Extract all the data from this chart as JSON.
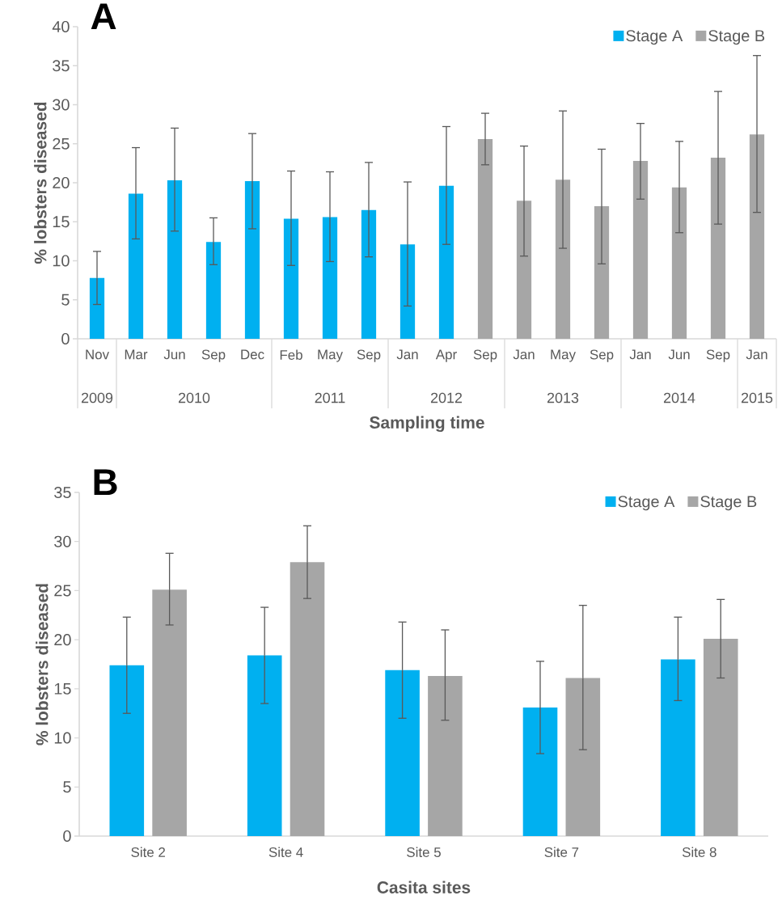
{
  "chart_data": [
    {
      "type": "bar",
      "title": "A",
      "xlabel": "Sampling time",
      "ylabel": "% lobsters diseased",
      "categories": [
        "Nov",
        "Mar",
        "Jun",
        "Sep",
        "Dec",
        "Feb",
        "May",
        "Sep",
        "Jan",
        "Apr",
        "Sep",
        "Jan",
        "May",
        "Sep",
        "Jan",
        "Jun",
        "Sep",
        "Jan"
      ],
      "series": [
        {
          "name": "Stage A",
          "color": "#00b0f0",
          "values": [
            7.8,
            18.6,
            20.3,
            12.4,
            20.2,
            15.4,
            15.6,
            16.5,
            12.1,
            19.6,
            null,
            null,
            null,
            null,
            null,
            null,
            null,
            null
          ],
          "errors": [
            [
              4.4,
              11.2
            ],
            [
              12.8,
              24.5
            ],
            [
              13.8,
              27.0
            ],
            [
              9.5,
              15.5
            ],
            [
              14.1,
              26.3
            ],
            [
              9.4,
              21.5
            ],
            [
              9.9,
              21.4
            ],
            [
              10.5,
              22.6
            ],
            [
              4.2,
              20.1
            ],
            [
              12.1,
              27.2
            ],
            null,
            null,
            null,
            null,
            null,
            null,
            null,
            null
          ]
        },
        {
          "name": "Stage B",
          "color": "#a6a6a6",
          "values": [
            null,
            null,
            null,
            null,
            null,
            null,
            null,
            null,
            null,
            null,
            25.6,
            17.7,
            20.4,
            17.0,
            22.8,
            19.4,
            23.2,
            26.2
          ],
          "errors": [
            null,
            null,
            null,
            null,
            null,
            null,
            null,
            null,
            null,
            null,
            [
              22.3,
              28.9
            ],
            [
              10.6,
              24.7
            ],
            [
              11.6,
              29.2
            ],
            [
              9.6,
              24.3
            ],
            [
              17.9,
              27.6
            ],
            [
              13.6,
              25.3
            ],
            [
              14.7,
              31.7
            ],
            [
              16.2,
              36.3
            ]
          ]
        }
      ],
      "ylim": [
        0,
        40
      ],
      "yticks": [
        0,
        5,
        10,
        15,
        20,
        25,
        30,
        35,
        40
      ],
      "legend": "top right",
      "annotations": [
        "2009",
        "2010",
        "2011",
        "2012",
        "2013",
        "2014",
        "2015"
      ]
    },
    {
      "type": "bar",
      "title": "B",
      "xlabel": "Casita sites",
      "ylabel": "% lobsters diseased",
      "categories": [
        "Site 2",
        "Site 4",
        "Site 5",
        "Site 7",
        "Site 8"
      ],
      "series": [
        {
          "name": "Stage A",
          "color": "#00b0f0",
          "values": [
            17.4,
            18.4,
            16.9,
            13.1,
            18.0
          ],
          "errors": [
            [
              12.5,
              22.3
            ],
            [
              13.5,
              23.3
            ],
            [
              12.0,
              21.8
            ],
            [
              8.4,
              17.8
            ],
            [
              13.8,
              22.3
            ]
          ]
        },
        {
          "name": "Stage B",
          "color": "#a6a6a6",
          "values": [
            25.1,
            27.9,
            16.3,
            16.1,
            20.1
          ],
          "errors": [
            [
              21.5,
              28.8
            ],
            [
              24.2,
              31.6
            ],
            [
              11.8,
              21.0
            ],
            [
              8.8,
              23.5
            ],
            [
              16.1,
              24.1
            ]
          ]
        }
      ],
      "ylim": [
        0,
        35
      ],
      "yticks": [
        0,
        5,
        10,
        15,
        20,
        25,
        30,
        35
      ],
      "legend": "top right"
    }
  ]
}
